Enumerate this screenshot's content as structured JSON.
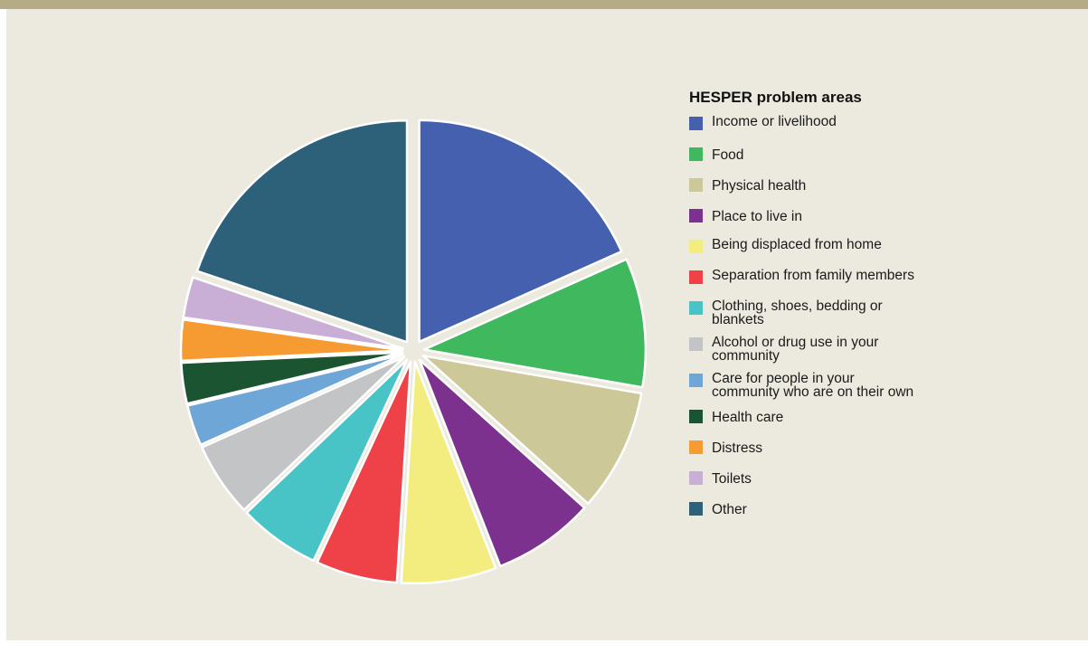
{
  "chart_data": {
    "type": "pie",
    "title": "HESPER problem areas",
    "legend_position": "right",
    "slices": [
      {
        "label": "Income or livelihood",
        "value": 18.5,
        "color": "#4460ae"
      },
      {
        "label": "Food",
        "value": 9.5,
        "color": "#3fb85e"
      },
      {
        "label": "Physical health",
        "value": 9.0,
        "color": "#ccc898"
      },
      {
        "label": "Place to live in",
        "value": 7.5,
        "color": "#7b318d"
      },
      {
        "label": "Being displaced from home",
        "value": 7.0,
        "color": "#f3ed80"
      },
      {
        "label": "Separation from family members",
        "value": 6.0,
        "color": "#ef4248"
      },
      {
        "label": "Clothing, shoes, bedding or blankets",
        "value": 6.0,
        "color": "#48c3c6"
      },
      {
        "label": "Alcohol or drug use in your community",
        "value": 5.5,
        "color": "#c3c4c6"
      },
      {
        "label": "Care for people in your community who are on their own",
        "value": 3.0,
        "color": "#6fa6d8"
      },
      {
        "label": "Health care",
        "value": 3.0,
        "color": "#1a5430"
      },
      {
        "label": "Distress",
        "value": 3.0,
        "color": "#f69a32"
      },
      {
        "label": "Toilets",
        "value": 3.0,
        "color": "#c9aed6"
      },
      {
        "label": "Other",
        "value": 20.0,
        "color": "#2c6179"
      }
    ]
  }
}
